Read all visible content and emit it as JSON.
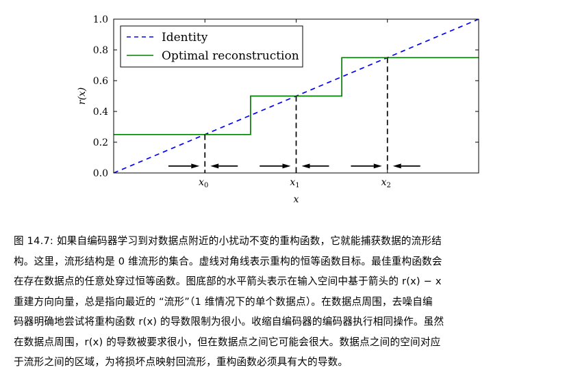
{
  "chart_data": {
    "type": "line",
    "xlabel": "x",
    "ylabel": "r(x)",
    "xlim": [
      0,
      1
    ],
    "ylim": [
      0,
      1
    ],
    "yticks": [
      {
        "value": 0.0,
        "label": "0.0"
      },
      {
        "value": 0.2,
        "label": "0.2"
      },
      {
        "value": 0.4,
        "label": "0.4"
      },
      {
        "value": 0.6,
        "label": "0.6"
      },
      {
        "value": 0.8,
        "label": "0.8"
      },
      {
        "value": 1.0,
        "label": "1.0"
      }
    ],
    "xticks": [
      {
        "value": 0.25,
        "base": "x",
        "sub": "0"
      },
      {
        "value": 0.5,
        "base": "x",
        "sub": "1"
      },
      {
        "value": 0.75,
        "base": "x",
        "sub": "2"
      }
    ],
    "legend": {
      "location": "upper-left",
      "entries": [
        {
          "label": "Identity",
          "color": "#0000ff",
          "style": "dashed"
        },
        {
          "label": "Optimal reconstruction",
          "color": "#008000",
          "style": "solid"
        }
      ]
    },
    "series": [
      {
        "name": "Identity",
        "color": "#0000ff",
        "style": "dashed",
        "x": [
          0,
          1
        ],
        "y": [
          0,
          1
        ]
      },
      {
        "name": "Optimal reconstruction",
        "color": "#008000",
        "style": "solid",
        "x": [
          0,
          0.375,
          0.375,
          0.625,
          0.625,
          1.0
        ],
        "y": [
          0.25,
          0.25,
          0.5,
          0.5,
          0.75,
          0.75
        ]
      }
    ],
    "data_points": [
      {
        "x": 0.25,
        "y": 0.25
      },
      {
        "x": 0.5,
        "y": 0.5
      },
      {
        "x": 0.75,
        "y": 0.75
      }
    ],
    "arrows": [
      {
        "from": 0.15,
        "to": 0.235,
        "y": 0.045
      },
      {
        "from": 0.34,
        "to": 0.265,
        "y": 0.045
      },
      {
        "from": 0.4,
        "to": 0.485,
        "y": 0.045
      },
      {
        "from": 0.59,
        "to": 0.515,
        "y": 0.045
      },
      {
        "from": 0.65,
        "to": 0.735,
        "y": 0.045
      },
      {
        "from": 0.84,
        "to": 0.765,
        "y": 0.045
      }
    ]
  },
  "caption": {
    "lines": [
      "图 14.7: 如果自编码器学习到对数据点附近的小扰动不变的重构函数，它就能捕获数据的流形结",
      "构。这里，流形结构是 0 维流形的集合。虚线对角线表示重构的恒等函数目标。最佳重构函数会",
      "在存在数据点的任意处穿过恒等函数。图底部的水平箭头表示在输入空间中基于箭头的 r(x) − x",
      "重建方向向量，总是指向最近的 “流形”（1 维情况下的单个数据点）。在数据点周围，去噪自编",
      "码器明确地尝试将重构函数 r(x) 的导数限制为很小。收缩自编码器的编码器执行相同操作。虽然",
      "在数据点周围，r(x) 的导数被要求很小，但在数据点之间它可能会很大。数据点之间的空间对应",
      "于流形之间的区域，为将损坏点映射回流形，重构函数必须具有大的导数。"
    ]
  }
}
